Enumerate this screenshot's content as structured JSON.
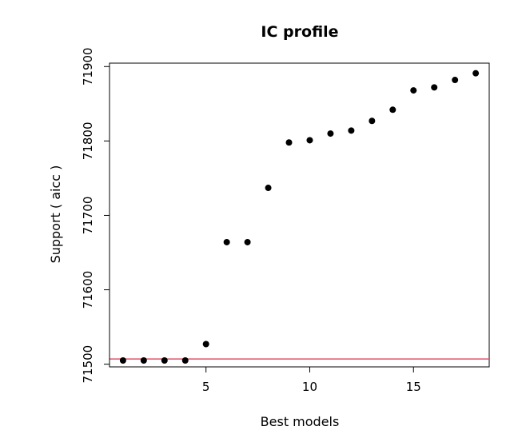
{
  "chart_data": {
    "type": "scatter",
    "title": "IC profile",
    "xlabel": "Best models",
    "ylabel": "Support ( aicc )",
    "xlim": [
      0.35,
      18.65
    ],
    "ylim": [
      71496.4,
      71904.6
    ],
    "x_ticks": [
      5,
      10,
      15
    ],
    "y_ticks": [
      71500,
      71600,
      71700,
      71800,
      71900
    ],
    "x": [
      1,
      2,
      3,
      4,
      5,
      6,
      7,
      8,
      9,
      10,
      11,
      12,
      13,
      14,
      15,
      16,
      17,
      18
    ],
    "y": [
      71505,
      71505,
      71505,
      71505,
      71527,
      71664,
      71664,
      71737,
      71798,
      71801,
      71810,
      71814,
      71827,
      71842,
      71868,
      71872,
      71882,
      71891
    ],
    "hline": {
      "y": 71507,
      "color": "#df536b"
    },
    "point_color": "#000000",
    "grid": false,
    "legend": "none"
  }
}
